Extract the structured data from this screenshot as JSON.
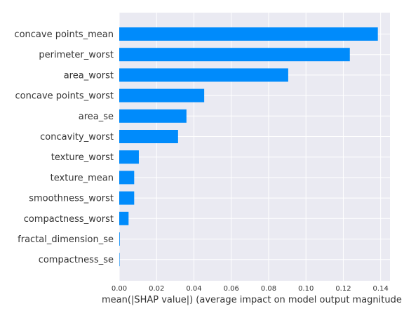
{
  "chart_data": {
    "type": "bar",
    "orientation": "horizontal",
    "categories": [
      "concave points_mean",
      "perimeter_worst",
      "area_worst",
      "concave points_worst",
      "area_se",
      "concavity_worst",
      "texture_worst",
      "texture_mean",
      "smoothness_worst",
      "compactness_worst",
      "fractal_dimension_se",
      "compactness_se"
    ],
    "values": [
      0.1385,
      0.1235,
      0.0905,
      0.0455,
      0.036,
      0.0315,
      0.0105,
      0.008,
      0.008,
      0.005,
      0.0003,
      0.0002
    ],
    "xlabel": "mean(|SHAP value|) (average impact on model output magnitude",
    "xlim": [
      0,
      0.145
    ],
    "xticks": [
      0,
      0.02,
      0.04,
      0.06,
      0.08,
      0.1,
      0.12,
      0.14
    ],
    "xtick_labels": [
      "0.00",
      "0.02",
      "0.04",
      "0.06",
      "0.08",
      "0.10",
      "0.12",
      "0.14"
    ],
    "grid": true,
    "bar_color": "#008bfb",
    "plot_background": "#eaeaf2",
    "grid_color": "#ffffff"
  }
}
